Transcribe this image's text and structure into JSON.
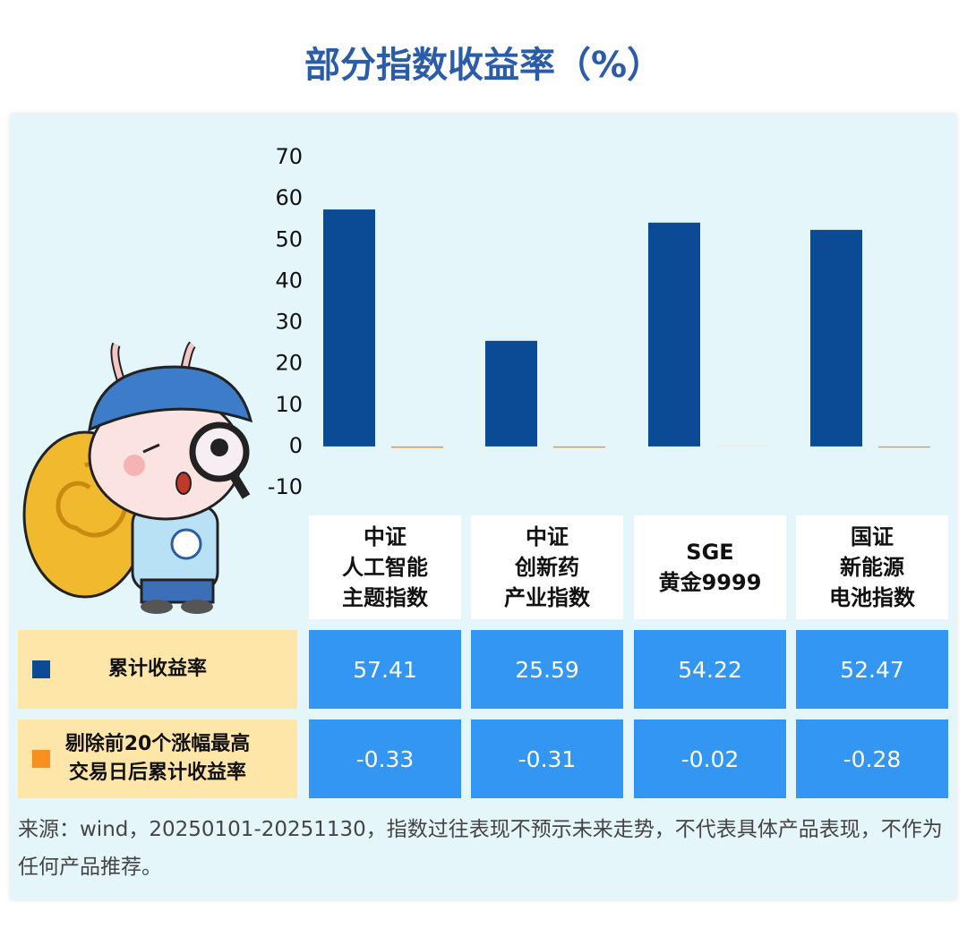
{
  "chart_data": {
    "type": "bar",
    "title": "部分指数收益率（%）",
    "categories": [
      "中证\n人工智能\n主题指数",
      "中证\n创新药\n产业指数",
      "SGE\n黄金9999",
      "国证\n新能源\n电池指数"
    ],
    "series": [
      {
        "name": "累计收益率",
        "color": "#0b4a94",
        "values": [
          57.41,
          25.59,
          54.22,
          52.47
        ]
      },
      {
        "name": "剔除前20个涨幅最高\n交易日后累计收益率",
        "color": "#f7901e",
        "values": [
          -0.33,
          -0.31,
          -0.02,
          -0.28
        ]
      }
    ],
    "ylim": [
      -10,
      70
    ],
    "yticks": [
      -10,
      0,
      10,
      20,
      30,
      40,
      50,
      60,
      70
    ],
    "grid": false,
    "note": "来源：wind，20250101-20251130，指数过往表现不预示未来走势，不代表具体产品表现，不作为任何产品推荐。"
  }
}
